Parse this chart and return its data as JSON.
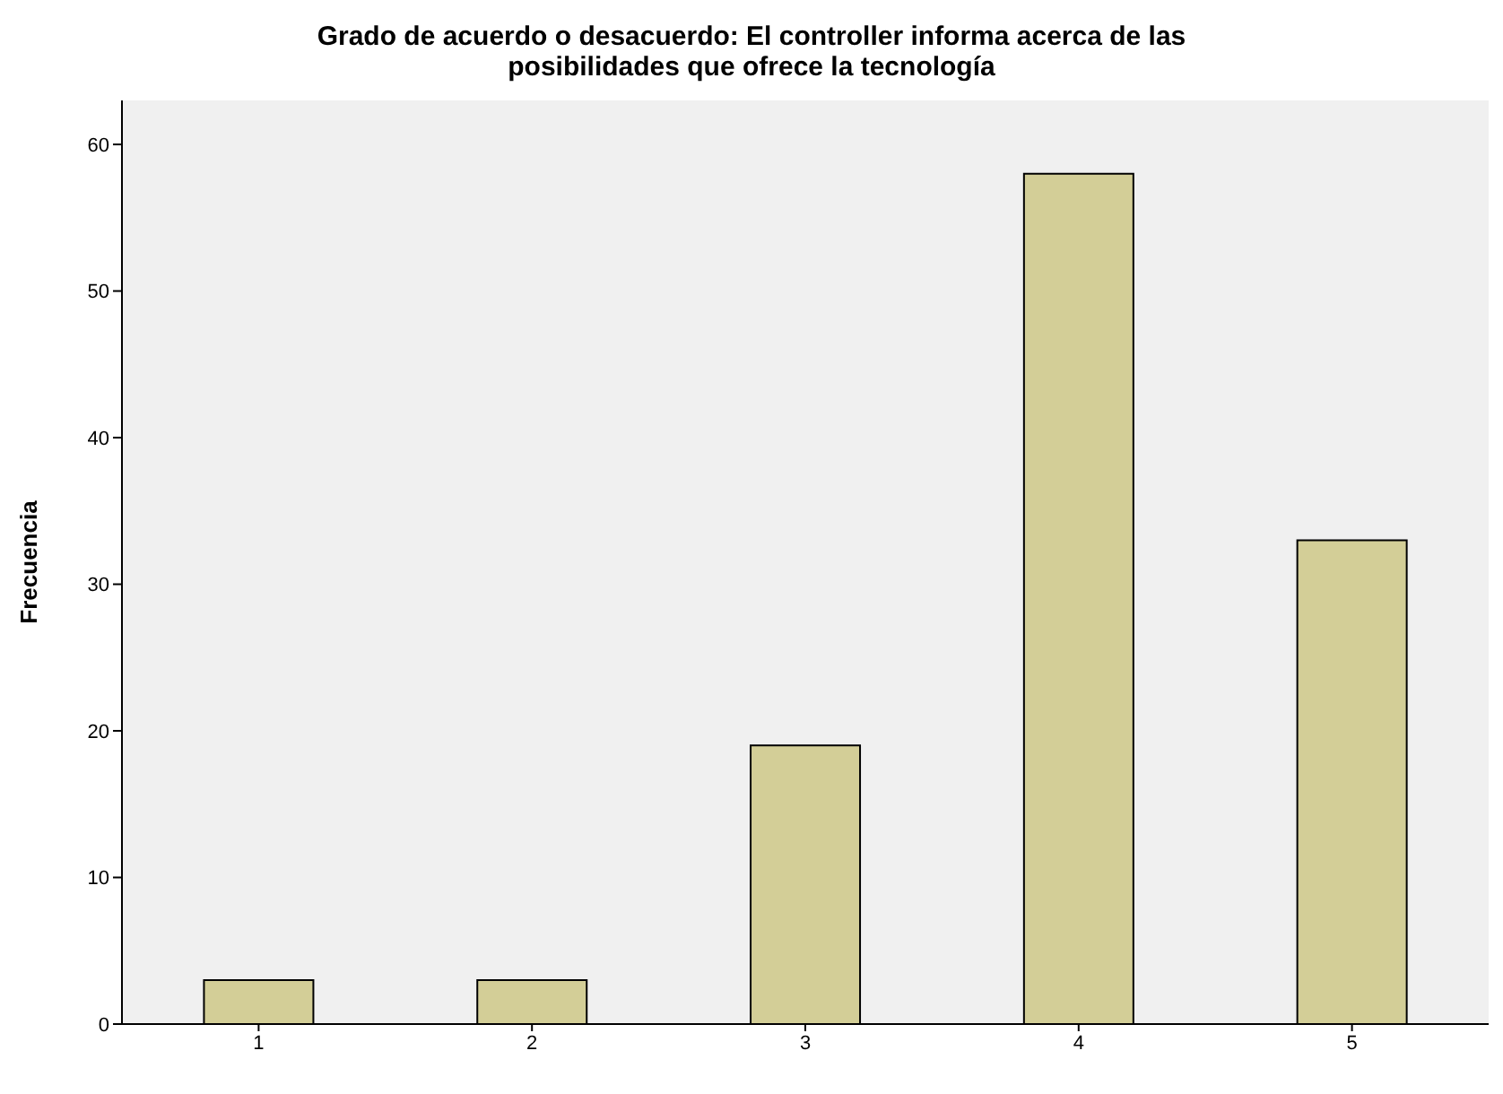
{
  "chart_data": {
    "type": "bar",
    "title": "Grado de acuerdo o desacuerdo: El controller informa acerca de las posibilidades que ofrece la tecnología",
    "ylabel": "Frecuencia",
    "categories": [
      "1",
      "2",
      "3",
      "4",
      "5"
    ],
    "series": [
      {
        "color": "#d3ce97",
        "values": [
          3,
          3,
          19,
          58,
          33
        ]
      }
    ],
    "ylim": [
      0,
      63
    ],
    "yticks": [
      0,
      10,
      20,
      30,
      40,
      50,
      60
    ]
  }
}
